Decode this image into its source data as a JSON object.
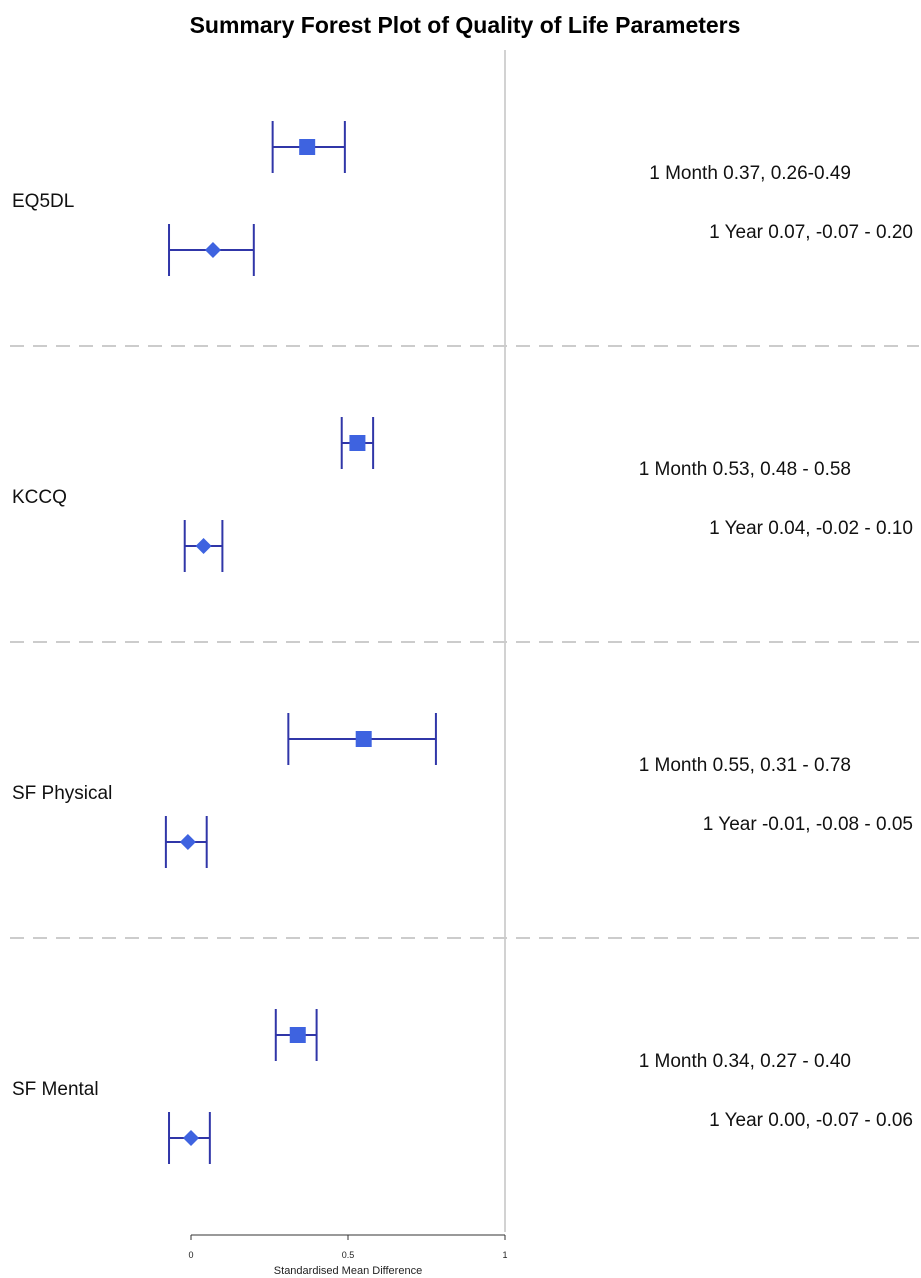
{
  "chart_data": {
    "type": "forest",
    "title": "Summary Forest Plot of Quality of Life Parameters",
    "xlabel": "Standardised Mean Difference",
    "xlim": [
      0,
      1
    ],
    "x_ticks": [
      {
        "value": 0,
        "label": "0"
      },
      {
        "value": 0.5,
        "label": "0.5"
      },
      {
        "value": 1,
        "label": "1"
      }
    ],
    "reference_line": 1,
    "group_separators": "dashed",
    "marker_color": "#3e63e0",
    "whisker_color": "#3036a8",
    "series": [
      {
        "name": "1 Month",
        "marker": "square"
      },
      {
        "name": "1 Year",
        "marker": "diamond"
      }
    ],
    "groups": [
      {
        "name": "EQ5DL",
        "estimates": [
          {
            "series": "1 Month",
            "value": 0.37,
            "lower": 0.26,
            "upper": 0.49,
            "label": "1 Month 0.37, 0.26-0.49"
          },
          {
            "series": "1 Year",
            "value": 0.07,
            "lower": -0.07,
            "upper": 0.2,
            "label": "1 Year 0.07, -0.07 - 0.20"
          }
        ]
      },
      {
        "name": "KCCQ",
        "estimates": [
          {
            "series": "1 Month",
            "value": 0.53,
            "lower": 0.48,
            "upper": 0.58,
            "label": "1 Month 0.53, 0.48 - 0.58"
          },
          {
            "series": "1 Year",
            "value": 0.04,
            "lower": -0.02,
            "upper": 0.1,
            "label": "1 Year 0.04, -0.02 - 0.10"
          }
        ]
      },
      {
        "name": "SF Physical",
        "estimates": [
          {
            "series": "1 Month",
            "value": 0.55,
            "lower": 0.31,
            "upper": 0.78,
            "label": "1 Month 0.55, 0.31 - 0.78"
          },
          {
            "series": "1 Year",
            "value": -0.01,
            "lower": -0.08,
            "upper": 0.05,
            "label": "1 Year -0.01, -0.08 - 0.05"
          }
        ]
      },
      {
        "name": "SF Mental",
        "estimates": [
          {
            "series": "1 Month",
            "value": 0.34,
            "lower": 0.27,
            "upper": 0.4,
            "label": "1 Month 0.34, 0.27 - 0.40"
          },
          {
            "series": "1 Year",
            "value": 0.0,
            "lower": -0.07,
            "upper": 0.06,
            "label": "1 Year 0.00, -0.07 - 0.06"
          }
        ]
      }
    ]
  }
}
